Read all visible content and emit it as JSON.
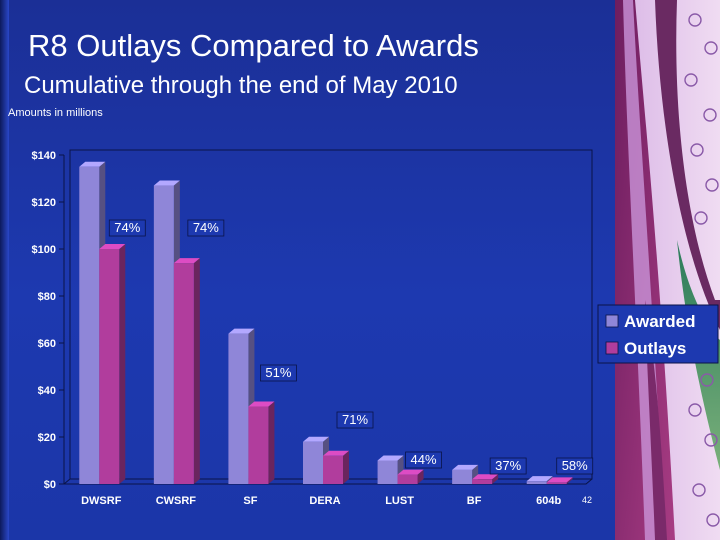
{
  "slide": {
    "title": "R8 Outlays Compared to Awards",
    "subtitle": "Cumulative through the end of May 2010",
    "units_note": "Amounts in millions",
    "page_number": "42"
  },
  "colors": {
    "background": "#1d39b0",
    "awarded": "#8f86d8",
    "outlays": "#b13d9d",
    "text": "#ffffff"
  },
  "chart_data": {
    "type": "bar",
    "categories": [
      "DWSRF",
      "CWSRF",
      "SF",
      "DERA",
      "LUST",
      "BF",
      "604b"
    ],
    "series": [
      {
        "name": "Awarded",
        "values": [
          135,
          127,
          64,
          18,
          10,
          6,
          1.2
        ]
      },
      {
        "name": "Outlays",
        "values": [
          100,
          94,
          33,
          12,
          4,
          2,
          0.7
        ]
      }
    ],
    "annotations": [
      "74%",
      "74%",
      "51%",
      "71%",
      "44%",
      "37%",
      "58%"
    ],
    "yticks": [
      "$0",
      "$20",
      "$40",
      "$60",
      "$80",
      "$100",
      "$120",
      "$140"
    ],
    "ylim": [
      0,
      140
    ],
    "legend_position": "right",
    "grid": false,
    "style": "3d-bars"
  }
}
